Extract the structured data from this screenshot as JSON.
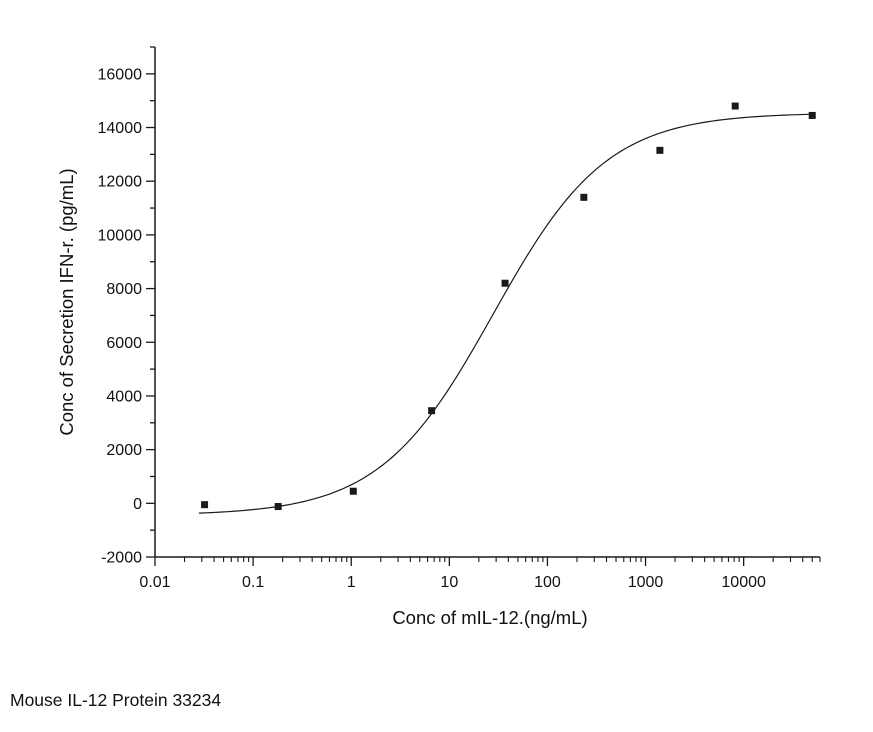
{
  "caption": {
    "text": "Mouse IL-12 Protein 33234"
  },
  "chart_data": {
    "type": "scatter",
    "title": "",
    "xlabel": "Conc of mIL-12.(ng/mL)",
    "ylabel": "Conc of Secretion IFN-r. (pg/mL)",
    "x_scale": "log",
    "x_range": [
      0.01,
      60000
    ],
    "y_range": [
      -2000,
      17000
    ],
    "y_major_step": 2000,
    "y_minor_step": 1000,
    "y_label_min": -2000,
    "y_label_max": 16000,
    "x_major_ticks": [
      {
        "value": 0.01,
        "label": "0.01"
      },
      {
        "value": 0.1,
        "label": "0.1"
      },
      {
        "value": 1,
        "label": "1"
      },
      {
        "value": 10,
        "label": "10"
      },
      {
        "value": 100,
        "label": "100"
      },
      {
        "value": 1000,
        "label": "1000"
      },
      {
        "value": 10000,
        "label": "10000"
      }
    ],
    "points": [
      [
        0.032,
        -50
      ],
      [
        0.18,
        -120
      ],
      [
        1.05,
        450
      ],
      [
        6.6,
        3450
      ],
      [
        37,
        8200
      ],
      [
        235,
        11400
      ],
      [
        1400,
        13150
      ],
      [
        8200,
        14800
      ],
      [
        50000,
        14450
      ]
    ],
    "fit_curve": {
      "model": "4PL",
      "bottom": -450,
      "top": 14550,
      "ec50": 28,
      "hill": 0.75,
      "x_start": 0.028,
      "x_end": 50000
    },
    "marker": {
      "shape": "square",
      "size": 7,
      "color": "#1a1a1a"
    },
    "line_color": "#1a1a1a",
    "grid": false,
    "legend": "none"
  }
}
